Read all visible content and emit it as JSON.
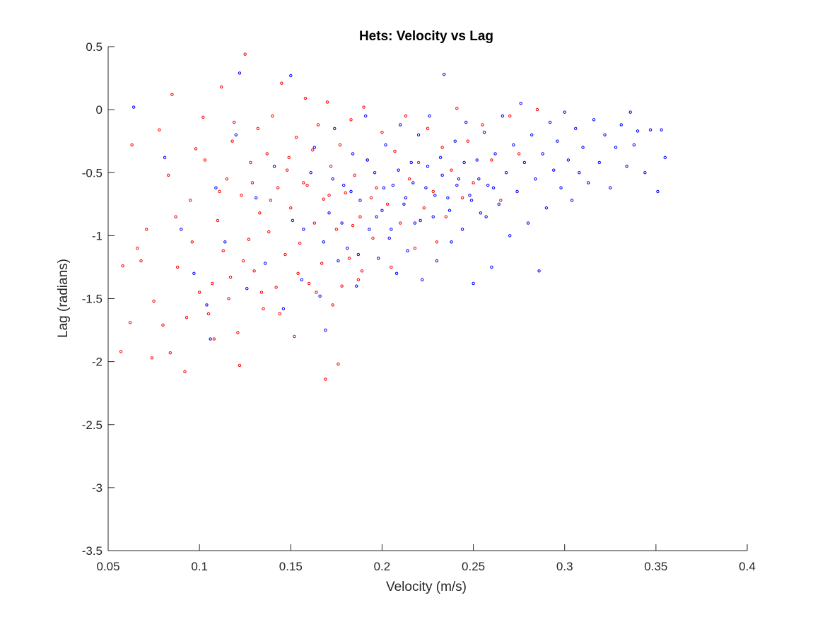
{
  "chart_data": {
    "type": "scatter",
    "title": "Hets: Velocity vs Lag",
    "xlabel": "Velocity (m/s)",
    "ylabel": "Lag (radians)",
    "xlim": [
      0.05,
      0.4
    ],
    "ylim": [
      -3.5,
      0.5
    ],
    "xticks": [
      0.05,
      0.1,
      0.15,
      0.2,
      0.25,
      0.3,
      0.35,
      0.4
    ],
    "xtick_labels": [
      "0.05",
      "0.1",
      "0.15",
      "0.2",
      "0.25",
      "0.3",
      "0.35",
      "0.4"
    ],
    "yticks": [
      0.5,
      0,
      -0.5,
      -1,
      -1.5,
      -2,
      -2.5,
      -3,
      -3.5
    ],
    "ytick_labels": [
      "0.5",
      "0",
      "-0.5",
      "-1",
      "-1.5",
      "-2",
      "-2.5",
      "-3",
      "-3.5"
    ],
    "grid": false,
    "marker": "open-circle",
    "series": [
      {
        "color": "#ff0000",
        "points": [
          [
            0.057,
            -1.92
          ],
          [
            0.058,
            -1.24
          ],
          [
            0.062,
            -1.69
          ],
          [
            0.063,
            -0.28
          ],
          [
            0.066,
            -1.1
          ],
          [
            0.068,
            -1.2
          ],
          [
            0.071,
            -0.95
          ],
          [
            0.074,
            -1.97
          ],
          [
            0.075,
            -1.52
          ],
          [
            0.078,
            -0.16
          ],
          [
            0.08,
            -1.71
          ],
          [
            0.083,
            -0.52
          ],
          [
            0.084,
            -1.93
          ],
          [
            0.085,
            0.12
          ],
          [
            0.088,
            -1.25
          ],
          [
            0.092,
            -2.08
          ],
          [
            0.093,
            -1.65
          ],
          [
            0.095,
            -0.72
          ],
          [
            0.098,
            -0.31
          ],
          [
            0.1,
            -1.45
          ],
          [
            0.102,
            -0.06
          ],
          [
            0.105,
            -1.62
          ],
          [
            0.108,
            -1.82
          ],
          [
            0.11,
            -0.88
          ],
          [
            0.112,
            0.18
          ],
          [
            0.113,
            -1.12
          ],
          [
            0.115,
            -0.55
          ],
          [
            0.117,
            -1.33
          ],
          [
            0.118,
            -0.25
          ],
          [
            0.121,
            -1.77
          ],
          [
            0.122,
            -2.03
          ],
          [
            0.123,
            -0.68
          ],
          [
            0.125,
            0.44
          ],
          [
            0.127,
            -1.03
          ],
          [
            0.128,
            -0.42
          ],
          [
            0.13,
            -1.28
          ],
          [
            0.132,
            -0.15
          ],
          [
            0.133,
            -0.82
          ],
          [
            0.135,
            -1.58
          ],
          [
            0.137,
            -0.35
          ],
          [
            0.138,
            -0.97
          ],
          [
            0.14,
            -0.05
          ],
          [
            0.142,
            -1.41
          ],
          [
            0.143,
            -0.62
          ],
          [
            0.145,
            0.21
          ],
          [
            0.147,
            -1.15
          ],
          [
            0.148,
            -0.48
          ],
          [
            0.15,
            -0.78
          ],
          [
            0.152,
            -1.8
          ],
          [
            0.153,
            -0.22
          ],
          [
            0.155,
            -1.06
          ],
          [
            0.157,
            -0.58
          ],
          [
            0.158,
            0.09
          ],
          [
            0.16,
            -1.38
          ],
          [
            0.162,
            -0.32
          ],
          [
            0.163,
            -0.9
          ],
          [
            0.165,
            -0.12
          ],
          [
            0.167,
            -1.22
          ],
          [
            0.168,
            -0.71
          ],
          [
            0.169,
            -2.14
          ],
          [
            0.17,
            0.06
          ],
          [
            0.172,
            -0.45
          ],
          [
            0.173,
            -1.55
          ],
          [
            0.175,
            -0.95
          ],
          [
            0.176,
            -2.02
          ],
          [
            0.177,
            -0.28
          ],
          [
            0.18,
            -0.66
          ],
          [
            0.182,
            -1.18
          ],
          [
            0.183,
            -0.08
          ],
          [
            0.185,
            -0.52
          ],
          [
            0.187,
            -1.35
          ],
          [
            0.188,
            -0.85
          ],
          [
            0.19,
            0.02
          ],
          [
            0.192,
            -0.4
          ],
          [
            0.195,
            -1.02
          ],
          [
            0.197,
            -0.62
          ],
          [
            0.2,
            -0.18
          ],
          [
            0.203,
            -0.75
          ],
          [
            0.205,
            -1.25
          ],
          [
            0.207,
            -0.33
          ],
          [
            0.21,
            -0.9
          ],
          [
            0.213,
            -0.05
          ],
          [
            0.215,
            -0.55
          ],
          [
            0.218,
            -1.1
          ],
          [
            0.22,
            -0.42
          ],
          [
            0.223,
            -0.78
          ],
          [
            0.225,
            -0.15
          ],
          [
            0.228,
            -0.65
          ],
          [
            0.23,
            -1.05
          ],
          [
            0.233,
            -0.3
          ],
          [
            0.235,
            -0.85
          ],
          [
            0.238,
            -0.48
          ],
          [
            0.241,
            0.01
          ],
          [
            0.244,
            -0.7
          ],
          [
            0.247,
            -0.25
          ],
          [
            0.25,
            -0.58
          ],
          [
            0.255,
            -0.12
          ],
          [
            0.26,
            -0.4
          ],
          [
            0.265,
            -0.72
          ],
          [
            0.27,
            -0.05
          ],
          [
            0.275,
            -0.35
          ],
          [
            0.285,
            0.0
          ],
          [
            0.087,
            -0.85
          ],
          [
            0.096,
            -1.05
          ],
          [
            0.103,
            -0.4
          ],
          [
            0.107,
            -1.38
          ],
          [
            0.111,
            -0.65
          ],
          [
            0.116,
            -1.5
          ],
          [
            0.119,
            -0.1
          ],
          [
            0.124,
            -1.2
          ],
          [
            0.129,
            -0.58
          ],
          [
            0.134,
            -1.45
          ],
          [
            0.139,
            -0.72
          ],
          [
            0.144,
            -1.62
          ],
          [
            0.149,
            -0.38
          ],
          [
            0.154,
            -1.3
          ],
          [
            0.159,
            -0.6
          ],
          [
            0.164,
            -1.45
          ],
          [
            0.171,
            -0.68
          ],
          [
            0.178,
            -1.4
          ],
          [
            0.184,
            -0.92
          ],
          [
            0.189,
            -1.28
          ],
          [
            0.194,
            -0.7
          ]
        ]
      },
      {
        "color": "#0000ff",
        "points": [
          [
            0.064,
            0.02
          ],
          [
            0.081,
            -0.38
          ],
          [
            0.09,
            -0.95
          ],
          [
            0.097,
            -1.3
          ],
          [
            0.104,
            -1.55
          ],
          [
            0.106,
            -1.82
          ],
          [
            0.109,
            -0.62
          ],
          [
            0.114,
            -1.05
          ],
          [
            0.12,
            -0.2
          ],
          [
            0.122,
            0.29
          ],
          [
            0.126,
            -1.42
          ],
          [
            0.131,
            -0.7
          ],
          [
            0.136,
            -1.22
          ],
          [
            0.141,
            -0.45
          ],
          [
            0.146,
            -1.58
          ],
          [
            0.15,
            0.27
          ],
          [
            0.151,
            -0.88
          ],
          [
            0.156,
            -1.35
          ],
          [
            0.161,
            -0.5
          ],
          [
            0.166,
            -1.48
          ],
          [
            0.169,
            -1.75
          ],
          [
            0.171,
            -0.82
          ],
          [
            0.174,
            -0.15
          ],
          [
            0.176,
            -1.2
          ],
          [
            0.179,
            -0.6
          ],
          [
            0.181,
            -1.1
          ],
          [
            0.184,
            -0.35
          ],
          [
            0.186,
            -1.4
          ],
          [
            0.188,
            -0.72
          ],
          [
            0.191,
            -0.05
          ],
          [
            0.193,
            -0.95
          ],
          [
            0.196,
            -0.5
          ],
          [
            0.198,
            -1.18
          ],
          [
            0.2,
            -0.8
          ],
          [
            0.202,
            -0.28
          ],
          [
            0.204,
            -1.02
          ],
          [
            0.206,
            -0.6
          ],
          [
            0.208,
            -1.3
          ],
          [
            0.21,
            -0.12
          ],
          [
            0.212,
            -0.75
          ],
          [
            0.214,
            -1.12
          ],
          [
            0.216,
            -0.42
          ],
          [
            0.218,
            -0.9
          ],
          [
            0.22,
            -0.2
          ],
          [
            0.222,
            -1.35
          ],
          [
            0.224,
            -0.62
          ],
          [
            0.226,
            -0.05
          ],
          [
            0.228,
            -0.85
          ],
          [
            0.23,
            -1.2
          ],
          [
            0.232,
            -0.38
          ],
          [
            0.234,
            0.28
          ],
          [
            0.236,
            -0.7
          ],
          [
            0.238,
            -1.05
          ],
          [
            0.24,
            -0.25
          ],
          [
            0.242,
            -0.55
          ],
          [
            0.244,
            -0.95
          ],
          [
            0.246,
            -0.1
          ],
          [
            0.248,
            -0.68
          ],
          [
            0.25,
            -1.38
          ],
          [
            0.252,
            -0.4
          ],
          [
            0.254,
            -0.82
          ],
          [
            0.256,
            -0.18
          ],
          [
            0.258,
            -0.6
          ],
          [
            0.26,
            -1.25
          ],
          [
            0.262,
            -0.35
          ],
          [
            0.264,
            -0.75
          ],
          [
            0.266,
            -0.05
          ],
          [
            0.268,
            -0.5
          ],
          [
            0.27,
            -1.0
          ],
          [
            0.272,
            -0.28
          ],
          [
            0.274,
            -0.65
          ],
          [
            0.276,
            0.05
          ],
          [
            0.278,
            -0.42
          ],
          [
            0.28,
            -0.9
          ],
          [
            0.282,
            -0.2
          ],
          [
            0.284,
            -0.55
          ],
          [
            0.286,
            -1.28
          ],
          [
            0.288,
            -0.35
          ],
          [
            0.29,
            -0.78
          ],
          [
            0.292,
            -0.1
          ],
          [
            0.294,
            -0.48
          ],
          [
            0.296,
            -0.25
          ],
          [
            0.298,
            -0.62
          ],
          [
            0.3,
            -0.02
          ],
          [
            0.302,
            -0.4
          ],
          [
            0.304,
            -0.72
          ],
          [
            0.306,
            -0.15
          ],
          [
            0.308,
            -0.5
          ],
          [
            0.31,
            -0.3
          ],
          [
            0.313,
            -0.58
          ],
          [
            0.316,
            -0.08
          ],
          [
            0.319,
            -0.42
          ],
          [
            0.322,
            -0.2
          ],
          [
            0.325,
            -0.62
          ],
          [
            0.328,
            -0.3
          ],
          [
            0.331,
            -0.12
          ],
          [
            0.334,
            -0.45
          ],
          [
            0.336,
            -0.02
          ],
          [
            0.338,
            -0.28
          ],
          [
            0.34,
            -0.17
          ],
          [
            0.344,
            -0.5
          ],
          [
            0.347,
            -0.16
          ],
          [
            0.351,
            -0.65
          ],
          [
            0.353,
            -0.16
          ],
          [
            0.355,
            -0.38
          ],
          [
            0.157,
            -0.95
          ],
          [
            0.163,
            -0.3
          ],
          [
            0.168,
            -1.05
          ],
          [
            0.173,
            -0.55
          ],
          [
            0.178,
            -0.9
          ],
          [
            0.183,
            -0.65
          ],
          [
            0.187,
            -1.15
          ],
          [
            0.192,
            -0.4
          ],
          [
            0.197,
            -0.85
          ],
          [
            0.201,
            -0.62
          ],
          [
            0.205,
            -0.95
          ],
          [
            0.209,
            -0.48
          ],
          [
            0.213,
            -0.7
          ],
          [
            0.217,
            -0.58
          ],
          [
            0.221,
            -0.88
          ],
          [
            0.225,
            -0.45
          ],
          [
            0.229,
            -0.68
          ],
          [
            0.233,
            -0.52
          ],
          [
            0.237,
            -0.8
          ],
          [
            0.241,
            -0.6
          ],
          [
            0.245,
            -0.42
          ],
          [
            0.249,
            -0.72
          ],
          [
            0.253,
            -0.55
          ],
          [
            0.257,
            -0.85
          ],
          [
            0.261,
            -0.62
          ]
        ]
      }
    ]
  }
}
